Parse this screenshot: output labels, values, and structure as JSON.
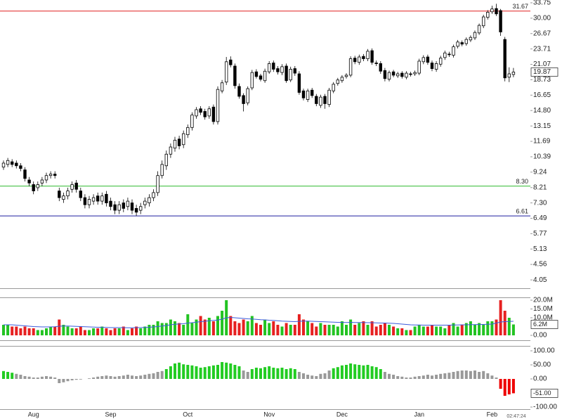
{
  "timestamp": "02:47:24",
  "chart_data": [
    {
      "type": "candlestick",
      "categories": [
        null,
        null,
        null,
        null,
        null,
        null,
        null,
        "Aug",
        null,
        null,
        null,
        null,
        null,
        null,
        null,
        null,
        null,
        null,
        null,
        null,
        null,
        null,
        null,
        null,
        null,
        "Sep",
        null,
        null,
        null,
        null,
        null,
        null,
        null,
        null,
        null,
        null,
        null,
        null,
        null,
        null,
        null,
        null,
        null,
        "Oct",
        null,
        null,
        null,
        null,
        null,
        null,
        null,
        null,
        null,
        null,
        null,
        null,
        null,
        null,
        null,
        null,
        null,
        null,
        "Nov",
        null,
        null,
        null,
        null,
        null,
        null,
        null,
        null,
        null,
        null,
        null,
        null,
        null,
        null,
        null,
        null,
        "Dec",
        null,
        null,
        null,
        null,
        null,
        null,
        null,
        null,
        null,
        null,
        null,
        null,
        null,
        null,
        null,
        null,
        null,
        "Jan",
        null,
        null,
        null,
        null,
        null,
        null,
        null,
        null,
        null,
        null,
        null,
        null,
        null,
        null,
        null,
        null,
        "Feb",
        null,
        null,
        null,
        null,
        null
      ],
      "open": [
        9.6,
        9.8,
        10.0,
        9.9,
        9.7,
        9.4,
        8.7,
        8.4,
        8.2,
        8.5,
        8.7,
        9.0,
        9.1,
        8.0,
        7.5,
        7.7,
        8.1,
        8.5,
        8.0,
        7.6,
        7.2,
        7.4,
        7.7,
        7.4,
        7.8,
        7.4,
        7.2,
        6.9,
        7.3,
        7.1,
        7.3,
        7.0,
        6.9,
        7.2,
        7.3,
        7.6,
        7.9,
        9.0,
        9.7,
        10.6,
        11.1,
        11.9,
        11.4,
        12.3,
        13.0,
        14.2,
        15.0,
        14.7,
        14.2,
        15.2,
        13.6,
        17.2,
        18.4,
        21.8,
        20.8,
        17.8,
        16.6,
        15.7,
        17.6,
        19.9,
        19.3,
        18.6,
        19.9,
        21.3,
        20.4,
        19.8,
        20.8,
        18.7,
        20.4,
        19.6,
        17.2,
        16.1,
        17.3,
        16.5,
        15.4,
        16.5,
        15.5,
        17.2,
        18.2,
        18.6,
        19.2,
        19.4,
        22.1,
        21.4,
        22.4,
        22.0,
        23.4,
        21.3,
        21.2,
        20.1,
        18.8,
        19.9,
        19.3,
        19.7,
        19.1,
        19.6,
        19.6,
        19.7,
        21.5,
        22.3,
        21.3,
        20.3,
        21.1,
        22.2,
        22.8,
        22.6,
        24.2,
        24.9,
        24.7,
        25.4,
        25.8,
        26.8,
        28.3,
        30.2,
        31.5,
        32.3,
        31.8,
        25.5,
        19.1,
        19.5
      ],
      "high": [
        10.1,
        10.3,
        10.2,
        10.1,
        9.9,
        9.6,
        8.9,
        8.6,
        8.6,
        8.9,
        9.2,
        9.3,
        9.3,
        8.2,
        7.9,
        8.2,
        8.6,
        8.7,
        8.2,
        7.8,
        7.7,
        7.8,
        7.9,
        7.9,
        8.0,
        7.6,
        7.4,
        7.4,
        7.5,
        7.6,
        7.5,
        7.2,
        7.3,
        7.6,
        7.8,
        8.1,
        9.3,
        10.1,
        10.9,
        11.5,
        12.1,
        12.2,
        12.7,
        13.3,
        14.6,
        15.2,
        15.3,
        15.0,
        15.3,
        15.5,
        17.8,
        18.7,
        22.3,
        22.4,
        21.2,
        18.2,
        16.9,
        17.8,
        20.2,
        20.3,
        19.6,
        20.4,
        21.6,
        21.7,
        20.8,
        21.1,
        21.2,
        20.7,
        20.8,
        20.0,
        17.5,
        17.5,
        17.6,
        16.8,
        16.7,
        16.8,
        17.6,
        18.4,
        19.0,
        19.4,
        19.7,
        22.4,
        22.5,
        22.7,
        22.8,
        23.7,
        23.8,
        21.7,
        21.6,
        20.5,
        20.1,
        20.2,
        19.9,
        20.0,
        20.0,
        19.9,
        20.1,
        22.0,
        22.6,
        22.7,
        21.7,
        21.6,
        22.5,
        23.4,
        23.2,
        24.5,
        25.4,
        25.3,
        25.9,
        26.3,
        27.3,
        28.8,
        30.8,
        31.9,
        33.0,
        33.5,
        32.2,
        26.0,
        20.6,
        20.5
      ],
      "low": [
        9.4,
        9.6,
        9.6,
        9.5,
        9.3,
        8.6,
        8.3,
        7.8,
        8.0,
        8.3,
        8.5,
        8.8,
        8.8,
        7.4,
        7.3,
        7.5,
        7.9,
        7.9,
        7.4,
        7.0,
        7.0,
        7.2,
        7.2,
        7.2,
        7.1,
        6.9,
        6.7,
        6.7,
        6.8,
        6.9,
        6.7,
        6.61,
        6.7,
        7.0,
        7.1,
        7.4,
        7.7,
        8.8,
        9.4,
        10.3,
        10.8,
        11.0,
        11.1,
        12.0,
        12.7,
        13.9,
        14.3,
        13.8,
        13.9,
        13.3,
        13.3,
        16.9,
        18.0,
        20.6,
        17.5,
        16.2,
        14.7,
        15.4,
        17.3,
        18.9,
        18.5,
        18.3,
        19.6,
        19.9,
        19.5,
        19.4,
        18.3,
        18.4,
        19.3,
        16.7,
        16.0,
        15.8,
        16.3,
        15.3,
        15.1,
        15.0,
        15.2,
        16.9,
        17.9,
        18.3,
        18.9,
        19.1,
        21.1,
        21.0,
        21.6,
        21.6,
        21.0,
        20.8,
        19.6,
        18.5,
        18.5,
        19.1,
        19.0,
        18.9,
        18.8,
        19.2,
        19.3,
        19.4,
        21.1,
        21.0,
        20.0,
        19.9,
        20.7,
        21.8,
        22.3,
        22.2,
        23.8,
        24.2,
        24.3,
        25.0,
        25.4,
        26.4,
        27.8,
        29.7,
        31.0,
        30.5,
        26.2,
        18.5,
        18.4,
        19.1
      ],
      "close": [
        9.9,
        10.1,
        9.8,
        9.7,
        9.5,
        8.8,
        8.5,
        8.0,
        8.4,
        8.7,
        9.0,
        9.1,
        9.0,
        7.6,
        7.7,
        8.0,
        8.4,
        8.1,
        7.6,
        7.2,
        7.5,
        7.6,
        7.4,
        7.7,
        7.3,
        7.1,
        6.9,
        7.2,
        7.0,
        7.4,
        6.9,
        6.8,
        7.1,
        7.4,
        7.6,
        7.9,
        9.0,
        9.8,
        10.6,
        11.2,
        11.8,
        11.3,
        12.4,
        13.0,
        14.3,
        14.9,
        14.6,
        14.1,
        15.0,
        13.6,
        17.4,
        18.3,
        21.5,
        21.0,
        17.9,
        16.5,
        15.6,
        17.5,
        19.8,
        19.2,
        18.8,
        20.0,
        21.2,
        20.3,
        19.9,
        20.7,
        18.6,
        20.3,
        19.7,
        17.0,
        16.3,
        17.2,
        16.6,
        15.6,
        16.4,
        15.6,
        17.3,
        18.1,
        18.7,
        19.1,
        19.4,
        22.0,
        21.5,
        22.3,
        22.0,
        23.3,
        21.4,
        21.2,
        20.0,
        18.9,
        19.8,
        19.4,
        19.6,
        19.2,
        19.7,
        19.5,
        19.8,
        21.6,
        22.2,
        21.4,
        20.4,
        21.2,
        22.1,
        23.0,
        22.7,
        24.1,
        25.0,
        24.6,
        25.5,
        25.9,
        26.9,
        28.4,
        30.3,
        31.4,
        32.2,
        31.0,
        27.0,
        19.0,
        19.6,
        19.87
      ],
      "up_color": "#ffffff",
      "down_color": "#000000",
      "log_scale": true,
      "ylim": [
        3.8,
        34.48
      ],
      "yticks": [
        33.75,
        {
          "value": 30,
          "label": "30.00"
        },
        26.67,
        23.71,
        21.07,
        18.73,
        16.65,
        {
          "value": 14.8,
          "label": "14.80"
        },
        13.15,
        11.69,
        10.39,
        9.24,
        8.21,
        {
          "value": 7.3,
          "label": "7.30"
        },
        6.49,
        5.77,
        5.13,
        4.56,
        4.05
      ],
      "hlines": [
        {
          "value": 31.67,
          "color": "#e02020"
        },
        {
          "value": 8.3,
          "label": "8.30",
          "color": "#2cb82c"
        },
        {
          "value": 6.61,
          "color": "#1f1fa0"
        }
      ]
    },
    {
      "type": "bar",
      "values": [
        6,
        6,
        5,
        5,
        4,
        5,
        4,
        4,
        3,
        3,
        4,
        5,
        5,
        9,
        6,
        5,
        4,
        4,
        5,
        3,
        3,
        4,
        4,
        5,
        4,
        3,
        4,
        4,
        5,
        3,
        4,
        5,
        4,
        5,
        6,
        6,
        8,
        7,
        7,
        9,
        8,
        7,
        6,
        12,
        7,
        9,
        11,
        9,
        10,
        8,
        11,
        14,
        20,
        11,
        8,
        7,
        9,
        8,
        11,
        7,
        6,
        9,
        7,
        8,
        6,
        5,
        7,
        6,
        6,
        12,
        9,
        8,
        7,
        5,
        7,
        6,
        6,
        6,
        5,
        8,
        6,
        9,
        6,
        7,
        8,
        6,
        8,
        5,
        6,
        7,
        6,
        5,
        4,
        4,
        3,
        3,
        5,
        6,
        5,
        5,
        6,
        5,
        5,
        4,
        6,
        7,
        5,
        6,
        7,
        8,
        6,
        7,
        6,
        8,
        8,
        9,
        20,
        14,
        10,
        6.2
      ],
      "up_color": "#22c322",
      "down_color": "#e62020",
      "ylim": [
        -2.8,
        21.6
      ],
      "yticks": [
        {
          "value": 20,
          "label": "20.0M"
        },
        {
          "value": 15,
          "label": "15.0M"
        },
        {
          "value": 10,
          "label": "10.0M"
        },
        {
          "value": 0,
          "label": "0.00"
        }
      ],
      "ma": {
        "color": "#3b5bdb",
        "values": [
          6,
          6,
          6,
          5.8,
          5.6,
          5.4,
          5.2,
          5,
          4.9,
          4.8,
          4.8,
          4.8,
          4.9,
          5.2,
          5.3,
          5.3,
          5.2,
          5.1,
          5,
          4.9,
          4.8,
          4.7,
          4.6,
          4.6,
          4.5,
          4.4,
          4.4,
          4.4,
          4.4,
          4.3,
          4.3,
          4.4,
          4.4,
          4.5,
          4.6,
          4.8,
          5,
          5.3,
          5.6,
          6,
          6.3,
          6.5,
          6.6,
          7,
          7.2,
          7.5,
          7.8,
          8,
          8.3,
          8.5,
          8.7,
          9.2,
          10,
          10.2,
          10,
          9.8,
          9.6,
          9.4,
          9.3,
          9.1,
          8.9,
          8.8,
          8.6,
          8.5,
          8.3,
          8.1,
          8,
          7.9,
          7.8,
          8,
          8.1,
          8.1,
          8,
          7.9,
          7.8,
          7.7,
          7.6,
          7.5,
          7.4,
          7.4,
          7.3,
          7.4,
          7.3,
          7.3,
          7.3,
          7.2,
          7.2,
          7.1,
          7,
          7,
          6.9,
          6.8,
          6.6,
          6.4,
          6.2,
          6,
          5.9,
          5.9,
          5.8,
          5.8,
          5.8,
          5.8,
          5.8,
          5.8,
          5.8,
          5.9,
          5.9,
          6,
          6,
          6.1,
          6.1,
          6.2,
          6.2,
          6.3,
          6.4,
          7,
          7.6,
          7.8,
          7.9,
          8
        ]
      },
      "current_label": "6.2M"
    },
    {
      "type": "bar",
      "values": [
        28,
        25,
        22,
        18,
        15,
        10,
        8,
        5,
        5,
        8,
        10,
        8,
        5,
        -15,
        -12,
        -8,
        -5,
        -3,
        -2,
        0,
        2,
        5,
        8,
        10,
        12,
        10,
        8,
        10,
        12,
        15,
        12,
        10,
        12,
        15,
        18,
        20,
        25,
        28,
        35,
        45,
        55,
        58,
        52,
        50,
        48,
        45,
        40,
        42,
        45,
        48,
        50,
        60,
        58,
        55,
        50,
        45,
        30,
        25,
        35,
        40,
        38,
        42,
        45,
        40,
        38,
        40,
        35,
        38,
        35,
        25,
        20,
        15,
        12,
        10,
        18,
        20,
        30,
        38,
        42,
        48,
        50,
        55,
        52,
        50,
        48,
        50,
        45,
        42,
        35,
        25,
        18,
        15,
        10,
        8,
        5,
        5,
        8,
        10,
        12,
        15,
        12,
        15,
        18,
        20,
        22,
        25,
        28,
        30,
        30,
        28,
        30,
        25,
        28,
        20,
        12,
        5,
        -35,
        -60,
        -55,
        -51
      ],
      "colors": [
        "#2c2",
        "#2c2",
        "#2c2",
        "#999",
        "#999",
        "#999",
        "#999",
        "#999",
        "#999",
        "#999",
        "#999",
        "#999",
        "#999",
        "#999",
        "#999",
        "#999",
        "#999",
        "#999",
        "#999",
        "#999",
        "#999",
        "#999",
        "#999",
        "#999",
        "#999",
        "#999",
        "#999",
        "#999",
        "#999",
        "#999",
        "#999",
        "#999",
        "#999",
        "#999",
        "#999",
        "#999",
        "#999",
        "#999",
        "#2c2",
        "#2c2",
        "#2c2",
        "#2c2",
        "#2c2",
        "#2c2",
        "#2c2",
        "#2c2",
        "#2c2",
        "#2c2",
        "#2c2",
        "#2c2",
        "#2c2",
        "#2c2",
        "#2c2",
        "#2c2",
        "#2c2",
        "#2c2",
        "#999",
        "#999",
        "#2c2",
        "#2c2",
        "#2c2",
        "#2c2",
        "#2c2",
        "#2c2",
        "#2c2",
        "#2c2",
        "#2c2",
        "#2c2",
        "#2c2",
        "#999",
        "#999",
        "#999",
        "#999",
        "#999",
        "#999",
        "#999",
        "#999",
        "#2c2",
        "#2c2",
        "#2c2",
        "#2c2",
        "#2c2",
        "#2c2",
        "#2c2",
        "#2c2",
        "#2c2",
        "#2c2",
        "#2c2",
        "#2c2",
        "#999",
        "#999",
        "#999",
        "#999",
        "#999",
        "#999",
        "#999",
        "#999",
        "#999",
        "#999",
        "#999",
        "#999",
        "#999",
        "#999",
        "#999",
        "#999",
        "#999",
        "#999",
        "#999",
        "#999",
        "#999",
        "#999",
        "#999",
        "#999",
        "#999",
        "#999",
        "#999",
        "#e00",
        "#e00",
        "#e00",
        "#e00"
      ],
      "ylim": [
        -107.5,
        117.5
      ],
      "yticks": [
        {
          "value": 100,
          "label": "100.00"
        },
        {
          "value": 50,
          "label": "50.00"
        },
        {
          "value": 0,
          "label": "0.00"
        },
        {
          "value": -100,
          "label": "-100.00"
        }
      ],
      "current_label": "-51.00"
    }
  ]
}
